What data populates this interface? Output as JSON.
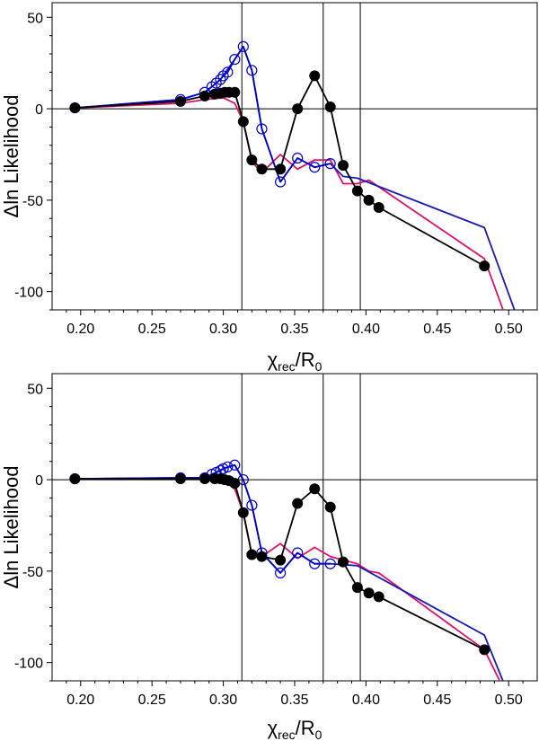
{
  "chart_data": [
    {
      "type": "line",
      "xlabel": {
        "main": "χ",
        "sub1": "rec",
        "mid": "/R",
        "sub2": "0"
      },
      "ylabel": "Δln Likelihood",
      "xlim": [
        0.18,
        0.52
      ],
      "ylim": [
        -110,
        58
      ],
      "xticks": [
        0.2,
        0.25,
        0.3,
        0.35,
        0.4,
        0.45,
        0.5
      ],
      "xtick_labels": [
        "0.20",
        "0.25",
        "0.30",
        "0.35",
        "0.40",
        "0.45",
        "0.50"
      ],
      "yticks": [
        -100,
        -50,
        0,
        50
      ],
      "ytick_labels": [
        "-100",
        "-50",
        "0",
        "50"
      ],
      "vlines": [
        0.313,
        0.37,
        0.396
      ],
      "hline": 0,
      "series": [
        {
          "name": "filled",
          "color": "#000000",
          "marker": "filled-circle",
          "x": [
            0.196,
            0.27,
            0.287,
            0.294,
            0.298,
            0.301,
            0.304,
            0.308,
            0.314,
            0.32,
            0.327,
            0.34,
            0.352,
            0.364,
            0.375,
            0.384,
            0.394,
            0.402,
            0.409,
            0.483
          ],
          "y": [
            0.5,
            4,
            7,
            8,
            8.5,
            9,
            9,
            9,
            -7,
            -28,
            -33,
            -33,
            0,
            18,
            1,
            -31,
            -45,
            -50,
            -54,
            -86
          ]
        },
        {
          "name": "open",
          "color": "#0000cc",
          "marker": "open-circle",
          "x": [
            0.196,
            0.27,
            0.287,
            0.292,
            0.295,
            0.298,
            0.3,
            0.303,
            0.308,
            0.314,
            0.32,
            0.327,
            0.34,
            0.352,
            0.364,
            0.375
          ],
          "y": [
            0.5,
            5,
            9,
            12,
            14,
            16,
            18,
            20,
            27,
            34,
            21,
            -11,
            -40,
            -27,
            -32,
            -30
          ]
        },
        {
          "name": "blue-line",
          "color": "#1a1ab5",
          "marker": "none",
          "x": [
            0.196,
            0.27,
            0.287,
            0.298,
            0.308,
            0.314,
            0.32,
            0.327,
            0.34,
            0.352,
            0.364,
            0.375,
            0.384,
            0.394,
            0.483,
            0.505
          ],
          "y": [
            0.5,
            5,
            9,
            16,
            27,
            34,
            21,
            -11,
            -40,
            -27,
            -32,
            -30,
            -37,
            -38,
            -65,
            -112
          ]
        },
        {
          "name": "pink-line",
          "color": "#e0106a",
          "marker": "none",
          "x": [
            0.196,
            0.27,
            0.287,
            0.3,
            0.308,
            0.314,
            0.32,
            0.327,
            0.34,
            0.352,
            0.364,
            0.375,
            0.384,
            0.394,
            0.402,
            0.483,
            0.497
          ],
          "y": [
            0.5,
            3,
            5,
            6,
            3,
            -7,
            -29,
            -35,
            -25,
            -33,
            -28,
            -28,
            -41,
            -41,
            -39,
            -82,
            -112
          ]
        }
      ]
    },
    {
      "type": "line",
      "xlabel": {
        "main": "χ",
        "sub1": "rec",
        "mid": "/R",
        "sub2": "0"
      },
      "ylabel": "Δln Likelihood",
      "xlim": [
        0.18,
        0.52
      ],
      "ylim": [
        -110,
        58
      ],
      "xticks": [
        0.2,
        0.25,
        0.3,
        0.35,
        0.4,
        0.45,
        0.5
      ],
      "xtick_labels": [
        "0.20",
        "0.25",
        "0.30",
        "0.35",
        "0.40",
        "0.45",
        "0.50"
      ],
      "yticks": [
        -100,
        -50,
        0,
        50
      ],
      "ytick_labels": [
        "-100",
        "-50",
        "0",
        "50"
      ],
      "vlines": [
        0.313,
        0.37,
        0.396
      ],
      "hline": 0,
      "series": [
        {
          "name": "filled",
          "color": "#000000",
          "marker": "filled-circle",
          "x": [
            0.196,
            0.27,
            0.287,
            0.294,
            0.298,
            0.301,
            0.304,
            0.308,
            0.314,
            0.32,
            0.327,
            0.34,
            0.352,
            0.364,
            0.375,
            0.384,
            0.394,
            0.402,
            0.409,
            0.483
          ],
          "y": [
            0.5,
            0.5,
            0.5,
            0.5,
            0.5,
            0,
            -0.5,
            -2,
            -18,
            -41,
            -42,
            -44,
            -13,
            -5,
            -15,
            -45,
            -59,
            -62,
            -64,
            -93
          ]
        },
        {
          "name": "open",
          "color": "#0000cc",
          "marker": "open-circle",
          "x": [
            0.196,
            0.27,
            0.287,
            0.292,
            0.295,
            0.298,
            0.3,
            0.303,
            0.308,
            0.314,
            0.32,
            0.327,
            0.34,
            0.352,
            0.364,
            0.375
          ],
          "y": [
            0.5,
            1,
            1,
            3,
            4,
            5,
            6,
            7,
            8,
            0,
            -14,
            -40,
            -51,
            -40,
            -46,
            -46
          ]
        },
        {
          "name": "blue-line",
          "color": "#1a1ab5",
          "marker": "none",
          "x": [
            0.196,
            0.27,
            0.287,
            0.3,
            0.308,
            0.314,
            0.32,
            0.327,
            0.34,
            0.352,
            0.364,
            0.375,
            0.394,
            0.483,
            0.497
          ],
          "y": [
            0.5,
            1,
            1,
            6,
            8,
            0,
            -14,
            -40,
            -51,
            -40,
            -46,
            -46,
            -47,
            -85,
            -112
          ]
        },
        {
          "name": "pink-line",
          "color": "#e0106a",
          "marker": "none",
          "x": [
            0.196,
            0.27,
            0.287,
            0.3,
            0.308,
            0.314,
            0.32,
            0.327,
            0.34,
            0.352,
            0.364,
            0.375,
            0.394,
            0.402,
            0.409,
            0.483,
            0.495
          ],
          "y": [
            0.5,
            0.5,
            0.5,
            -0.5,
            -5,
            -18,
            -41,
            -42,
            -35,
            -43,
            -37,
            -42,
            -46,
            -50,
            -51,
            -93,
            -112
          ]
        }
      ]
    }
  ]
}
